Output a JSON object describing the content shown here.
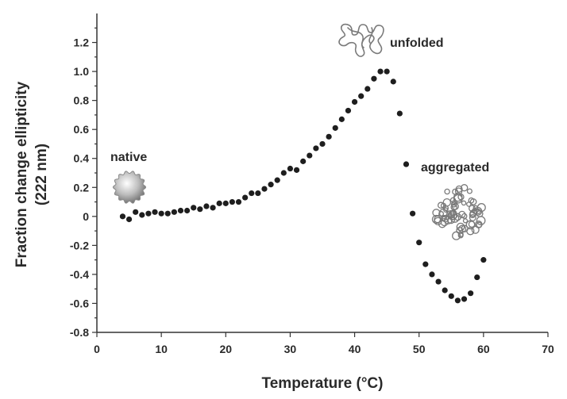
{
  "chart_data": {
    "type": "scatter",
    "xlabel": "Temperature (°C)",
    "ylabel_line1": "Fraction change ellipticity",
    "ylabel_line2": "(222 nm)",
    "xlim": [
      0,
      70
    ],
    "ylim": [
      -0.8,
      1.4
    ],
    "xticks": [
      0,
      10,
      20,
      30,
      40,
      50,
      60,
      70
    ],
    "yticks": [
      -0.8,
      -0.6,
      -0.4,
      -0.2,
      0,
      0.2,
      0.4,
      0.6,
      0.8,
      1.0,
      1.2
    ],
    "ytick_labels": [
      "-0.8",
      "-0.6",
      "-0.4",
      "-0.2",
      "0",
      "0.2",
      "0.4",
      "0.6",
      "0.8",
      "1.0",
      "1.2"
    ],
    "grid": false,
    "legend": "none",
    "point_color": "#1e1e1e",
    "annotations": [
      {
        "text": "native",
        "x": 6.5,
        "y": 0.47,
        "icon": "native-protein-icon"
      },
      {
        "text": "unfolded",
        "x": 51.5,
        "y": 1.21,
        "icon": "unfolded-protein-icon"
      },
      {
        "text": "aggregated",
        "x": 57.5,
        "y": 0.34,
        "icon": "aggregated-protein-icon"
      }
    ],
    "series": [
      {
        "points": [
          [
            4,
            0.0
          ],
          [
            5,
            -0.02
          ],
          [
            6,
            0.03
          ],
          [
            7,
            0.01
          ],
          [
            8,
            0.02
          ],
          [
            9,
            0.03
          ],
          [
            10,
            0.02
          ],
          [
            11,
            0.02
          ],
          [
            12,
            0.03
          ],
          [
            13,
            0.04
          ],
          [
            14,
            0.04
          ],
          [
            15,
            0.06
          ],
          [
            16,
            0.05
          ],
          [
            17,
            0.07
          ],
          [
            18,
            0.06
          ],
          [
            19,
            0.09
          ],
          [
            20,
            0.09
          ],
          [
            21,
            0.1
          ],
          [
            22,
            0.1
          ],
          [
            23,
            0.13
          ],
          [
            24,
            0.16
          ],
          [
            25,
            0.16
          ],
          [
            26,
            0.19
          ],
          [
            27,
            0.22
          ],
          [
            28,
            0.25
          ],
          [
            29,
            0.3
          ],
          [
            30,
            0.33
          ],
          [
            31,
            0.32
          ],
          [
            32,
            0.38
          ],
          [
            33,
            0.42
          ],
          [
            34,
            0.47
          ],
          [
            35,
            0.5
          ],
          [
            36,
            0.55
          ],
          [
            37,
            0.61
          ],
          [
            38,
            0.67
          ],
          [
            39,
            0.73
          ],
          [
            40,
            0.79
          ],
          [
            41,
            0.83
          ],
          [
            42,
            0.88
          ],
          [
            43,
            0.95
          ],
          [
            44,
            1.0
          ],
          [
            45,
            1.0
          ],
          [
            46,
            0.93
          ],
          [
            47,
            0.71
          ],
          [
            48,
            0.36
          ],
          [
            49,
            0.02
          ],
          [
            50,
            -0.18
          ],
          [
            51,
            -0.33
          ],
          [
            52,
            -0.4
          ],
          [
            53,
            -0.45
          ],
          [
            54,
            -0.51
          ],
          [
            55,
            -0.55
          ],
          [
            56,
            -0.58
          ],
          [
            57,
            -0.57
          ],
          [
            58,
            -0.53
          ],
          [
            59,
            -0.42
          ],
          [
            60,
            -0.3
          ]
        ]
      }
    ]
  }
}
